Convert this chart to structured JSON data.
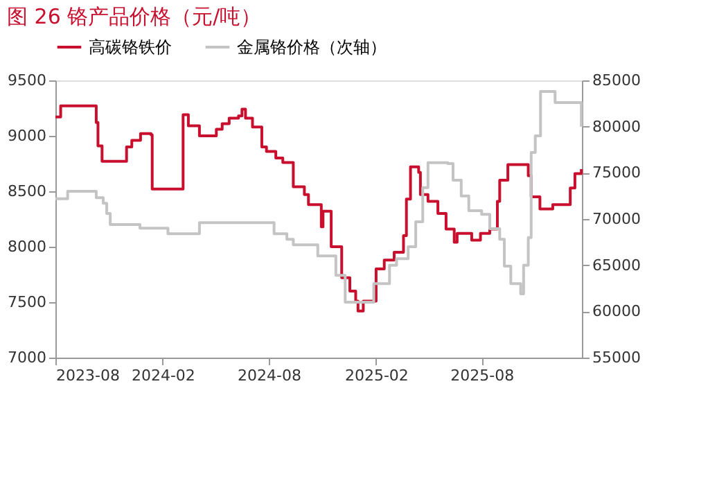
{
  "chart_data": {
    "type": "step",
    "title": "图 26 铬产品价格（元/吨）",
    "xlim": [
      "2023-08-01",
      "2026-01-20"
    ],
    "xticks": [
      "2023-08",
      "2024-02",
      "2024-08",
      "2025-02",
      "2025-08"
    ],
    "ylim": [
      7000,
      9500
    ],
    "yticks": [
      7000,
      7500,
      8000,
      8500,
      9000,
      9500
    ],
    "y2lim": [
      55000,
      85000
    ],
    "y2ticks": [
      55000,
      60000,
      65000,
      70000,
      75000,
      80000,
      85000
    ],
    "legend": "top",
    "grid": false,
    "series": [
      {
        "name": "高碳铬铁价",
        "color": "#c8102e",
        "x": [
          "2023-08-01",
          "2023-08-10",
          "2023-09-22",
          "2023-10-10",
          "2023-10-13",
          "2023-10-20",
          "2023-11-25",
          "2023-12-01",
          "2023-12-10",
          "2023-12-25",
          "2024-01-12",
          "2024-01-14",
          "2024-03-04",
          "2024-03-07",
          "2024-03-16",
          "2024-04-04",
          "2024-05-03",
          "2024-05-13",
          "2024-05-25",
          "2024-06-10",
          "2024-06-16",
          "2024-06-22",
          "2024-07-04",
          "2024-07-20",
          "2024-07-28",
          "2024-08-13",
          "2024-08-25",
          "2024-09-12",
          "2024-10-01",
          "2024-10-08",
          "2024-10-28",
          "2024-10-30",
          "2024-11-02",
          "2024-11-16",
          "2024-12-04",
          "2024-12-18",
          "2024-12-28",
          "2025-01-01",
          "2025-01-10",
          "2025-01-28",
          "2025-02-01",
          "2025-02-15",
          "2025-03-04",
          "2025-03-20",
          "2025-03-25",
          "2025-04-01",
          "2025-04-15",
          "2025-04-18",
          "2025-05-01",
          "2025-05-18",
          "2025-06-01",
          "2025-06-15",
          "2025-06-20",
          "2025-07-15",
          "2025-07-30",
          "2025-08-15",
          "2025-08-28",
          "2025-09-01",
          "2025-09-15",
          "2025-10-07",
          "2025-10-20",
          "2025-10-25",
          "2025-11-09",
          "2025-12-01",
          "2025-12-31",
          "2026-01-08",
          "2026-01-19"
        ],
        "values": [
          9170,
          9270,
          9270,
          9120,
          8910,
          8770,
          8770,
          8900,
          8960,
          9020,
          9010,
          8520,
          8520,
          9190,
          9090,
          9000,
          9060,
          9110,
          9160,
          9180,
          9240,
          9160,
          9080,
          8900,
          8860,
          8800,
          8760,
          8540,
          8470,
          8380,
          8380,
          8180,
          8320,
          8000,
          7720,
          7600,
          7510,
          7420,
          7510,
          7510,
          7800,
          7880,
          7950,
          8100,
          8430,
          8720,
          8670,
          8470,
          8410,
          8300,
          8160,
          8040,
          8120,
          8060,
          8120,
          8160,
          8410,
          8600,
          8740,
          8740,
          8640,
          8450,
          8340,
          8380,
          8530,
          8660,
          8700
        ]
      },
      {
        "name": "金属铬价格（次轴）",
        "color": "#c4c4c4",
        "axis": "y2",
        "x": [
          "2023-08-01",
          "2023-08-22",
          "2023-10-07",
          "2023-10-10",
          "2023-10-22",
          "2023-10-28",
          "2023-11-03",
          "2023-12-24",
          "2024-02-10",
          "2024-04-04",
          "2024-08-07",
          "2024-08-10",
          "2024-09-01",
          "2024-09-12",
          "2024-10-24",
          "2024-11-24",
          "2024-12-10",
          "2025-01-28",
          "2025-02-24",
          "2025-03-08",
          "2025-03-28",
          "2025-04-10",
          "2025-04-22",
          "2025-05-01",
          "2025-06-04",
          "2025-06-13",
          "2025-06-27",
          "2025-07-10",
          "2025-08-01",
          "2025-08-15",
          "2025-09-01",
          "2025-09-09",
          "2025-09-20",
          "2025-10-07",
          "2025-10-12",
          "2025-10-20",
          "2025-10-25",
          "2025-11-01",
          "2025-11-10",
          "2025-12-05",
          "2026-01-08",
          "2026-01-19"
        ],
        "values": [
          72200,
          73000,
          73000,
          72300,
          71700,
          70600,
          69400,
          69000,
          68400,
          69600,
          69600,
          68400,
          67800,
          67200,
          66000,
          63900,
          61000,
          63000,
          65000,
          65700,
          67000,
          69700,
          73400,
          76100,
          76000,
          74200,
          72500,
          70900,
          70500,
          68950,
          67800,
          64900,
          63000,
          61900,
          65000,
          68000,
          77200,
          79000,
          83800,
          82600,
          82600,
          80000
        ]
      }
    ]
  }
}
